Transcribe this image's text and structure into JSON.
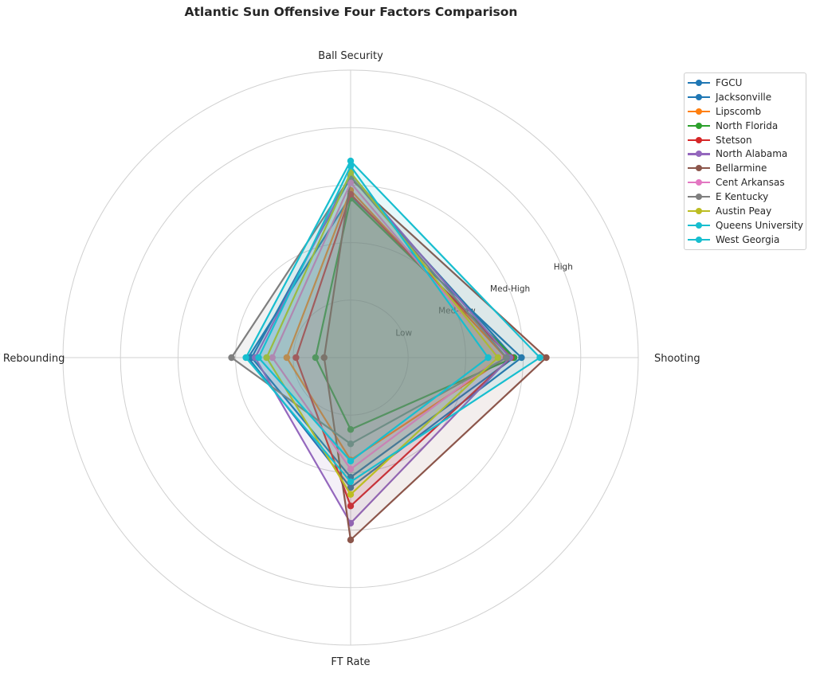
{
  "chart_data": {
    "type": "radar",
    "title": "Atlantic Sun Offensive Four Factors Comparison",
    "axes": [
      "Shooting",
      "Ball Security",
      "Off Rebounding",
      "FT Rate"
    ],
    "radial_tick_labels": [
      "Low",
      "Med-Low",
      "Med-High",
      "High"
    ],
    "radial_range": [
      0,
      5
    ],
    "grid": true,
    "legend_position": "upper right, outside plot",
    "series": [
      {
        "name": "FGCU",
        "color": "#1f77b4",
        "values": [
          2.84,
          3.14,
          1.72,
          2.08
        ]
      },
      {
        "name": "Jacksonville",
        "color": "#1f77b4",
        "values": [
          2.97,
          2.81,
          1.78,
          2.26
        ]
      },
      {
        "name": "Lipscomb",
        "color": "#ff7f0e",
        "values": [
          2.7,
          2.91,
          1.11,
          1.78
        ]
      },
      {
        "name": "North Florida",
        "color": "#2ca02c",
        "values": [
          2.84,
          2.77,
          0.61,
          1.25
        ]
      },
      {
        "name": "Stetson",
        "color": "#d62728",
        "values": [
          2.79,
          2.84,
          0.95,
          2.58
        ]
      },
      {
        "name": "North Alabama",
        "color": "#9467bd",
        "values": [
          2.77,
          3.2,
          1.66,
          2.88
        ]
      },
      {
        "name": "Bellarmine",
        "color": "#8c564b",
        "values": [
          3.4,
          3.11,
          0.46,
          3.17
        ]
      },
      {
        "name": "Cent Arkansas",
        "color": "#e377c2",
        "values": [
          2.58,
          3.04,
          1.36,
          1.94
        ]
      },
      {
        "name": "E Kentucky",
        "color": "#7f7f7f",
        "values": [
          2.71,
          3.15,
          2.07,
          1.5
        ]
      },
      {
        "name": "Austin Peay",
        "color": "#bcbd22",
        "values": [
          2.56,
          3.22,
          1.46,
          2.38
        ]
      },
      {
        "name": "Queens University",
        "color": "#17becf",
        "values": [
          3.29,
          3.42,
          1.82,
          2.16
        ]
      },
      {
        "name": "West Georgia",
        "color": "#17becf",
        "values": [
          2.39,
          3.33,
          1.6,
          1.8
        ]
      }
    ]
  }
}
